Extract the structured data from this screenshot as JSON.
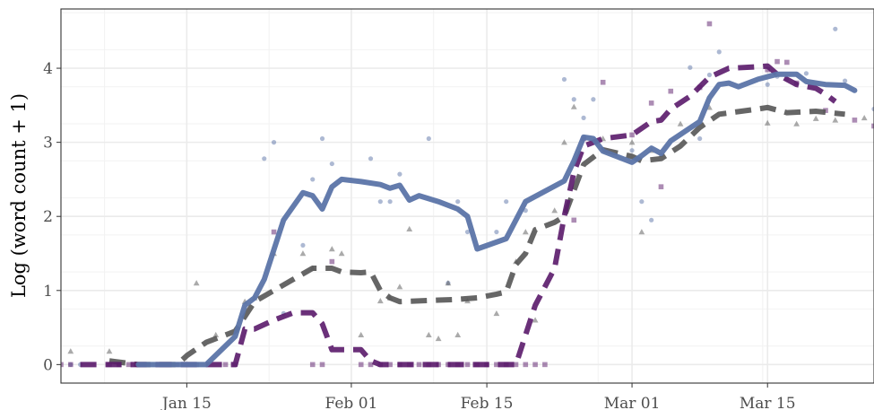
{
  "chart_data": {
    "type": "line",
    "title": "",
    "xlabel": "",
    "ylabel": "Log (word count + 1)",
    "x_type": "date",
    "xlim": [
      "2020-01-02",
      "2020-03-26"
    ],
    "ylim": [
      -0.25,
      4.8
    ],
    "x_ticks": [
      {
        "value": "2020-01-15",
        "label": "Jan 15"
      },
      {
        "value": "2020-02-01",
        "label": "Feb 01"
      },
      {
        "value": "2020-02-15",
        "label": "Feb 15"
      },
      {
        "value": "2020-03-01",
        "label": "Mar 01"
      },
      {
        "value": "2020-03-15",
        "label": "Mar 15"
      }
    ],
    "y_ticks": [
      0,
      1,
      2,
      3,
      4
    ],
    "grid": true,
    "legend": "none",
    "colors": {
      "blue": "#5b74a8",
      "purple": "#5a1a6a",
      "gray": "#555555"
    },
    "series": [
      {
        "color": "#5b74a8",
        "line_style": "solid",
        "marker": "circle",
        "smooth": [
          [
            "2020-01-10",
            0
          ],
          [
            "2020-01-17",
            0
          ],
          [
            "2020-01-20",
            0.38
          ],
          [
            "2020-01-21",
            0.8
          ],
          [
            "2020-01-22",
            0.9
          ],
          [
            "2020-01-23",
            1.15
          ],
          [
            "2020-01-24",
            1.55
          ],
          [
            "2020-01-25",
            1.95
          ],
          [
            "2020-01-27",
            2.32
          ],
          [
            "2020-01-28",
            2.28
          ],
          [
            "2020-01-29",
            2.1
          ],
          [
            "2020-01-30",
            2.4
          ],
          [
            "2020-01-31",
            2.5
          ],
          [
            "2020-02-02",
            2.47
          ],
          [
            "2020-02-04",
            2.43
          ],
          [
            "2020-02-05",
            2.38
          ],
          [
            "2020-02-06",
            2.42
          ],
          [
            "2020-02-07",
            2.22
          ],
          [
            "2020-02-08",
            2.28
          ],
          [
            "2020-02-10",
            2.2
          ],
          [
            "2020-02-12",
            2.1
          ],
          [
            "2020-02-13",
            2.0
          ],
          [
            "2020-02-14",
            1.56
          ],
          [
            "2020-02-17",
            1.7
          ],
          [
            "2020-02-19",
            2.2
          ],
          [
            "2020-02-23",
            2.48
          ],
          [
            "2020-02-24",
            2.75
          ],
          [
            "2020-02-25",
            3.07
          ],
          [
            "2020-02-26",
            3.05
          ],
          [
            "2020-02-27",
            2.88
          ],
          [
            "2020-03-01",
            2.73
          ],
          [
            "2020-03-02",
            2.82
          ],
          [
            "2020-03-03",
            2.92
          ],
          [
            "2020-03-04",
            2.85
          ],
          [
            "2020-03-05",
            3.02
          ],
          [
            "2020-03-08",
            3.28
          ],
          [
            "2020-03-09",
            3.6
          ],
          [
            "2020-03-10",
            3.78
          ],
          [
            "2020-03-11",
            3.8
          ],
          [
            "2020-03-12",
            3.75
          ],
          [
            "2020-03-14",
            3.85
          ],
          [
            "2020-03-16",
            3.92
          ],
          [
            "2020-03-18",
            3.92
          ],
          [
            "2020-03-19",
            3.82
          ],
          [
            "2020-03-21",
            3.78
          ],
          [
            "2020-03-23",
            3.77
          ],
          [
            "2020-03-24",
            3.7
          ]
        ],
        "points": [
          [
            "2020-01-03",
            0
          ],
          [
            "2020-01-04",
            0
          ],
          [
            "2020-01-08",
            0
          ],
          [
            "2020-01-10",
            0
          ],
          [
            "2020-01-12",
            0
          ],
          [
            "2020-01-14",
            0
          ],
          [
            "2020-01-15",
            0
          ],
          [
            "2020-01-23",
            2.78
          ],
          [
            "2020-01-24",
            3.0
          ],
          [
            "2020-01-25",
            0.69
          ],
          [
            "2020-01-27",
            1.61
          ],
          [
            "2020-01-28",
            2.5
          ],
          [
            "2020-01-29",
            3.05
          ],
          [
            "2020-01-30",
            2.71
          ],
          [
            "2020-02-03",
            2.78
          ],
          [
            "2020-02-04",
            2.2
          ],
          [
            "2020-02-05",
            2.2
          ],
          [
            "2020-02-06",
            2.57
          ],
          [
            "2020-02-09",
            3.05
          ],
          [
            "2020-02-11",
            1.1
          ],
          [
            "2020-02-12",
            2.2
          ],
          [
            "2020-02-13",
            1.79
          ],
          [
            "2020-02-16",
            1.79
          ],
          [
            "2020-02-17",
            2.2
          ],
          [
            "2020-02-19",
            2.08
          ],
          [
            "2020-02-23",
            3.85
          ],
          [
            "2020-02-24",
            3.58
          ],
          [
            "2020-02-25",
            3.33
          ],
          [
            "2020-02-26",
            3.58
          ],
          [
            "2020-03-01",
            2.89
          ],
          [
            "2020-03-02",
            2.2
          ],
          [
            "2020-03-03",
            1.95
          ],
          [
            "2020-03-04",
            2.83
          ],
          [
            "2020-03-07",
            4.01
          ],
          [
            "2020-03-08",
            3.05
          ],
          [
            "2020-03-09",
            3.91
          ],
          [
            "2020-03-10",
            4.22
          ],
          [
            "2020-03-15",
            3.78
          ],
          [
            "2020-03-16",
            3.89
          ],
          [
            "2020-03-17",
            3.85
          ],
          [
            "2020-03-19",
            3.93
          ],
          [
            "2020-03-22",
            4.53
          ],
          [
            "2020-03-23",
            3.83
          ],
          [
            "2020-03-26",
            3.45
          ]
        ]
      },
      {
        "color": "#5a1a6a",
        "line_style": "dashed",
        "marker": "square",
        "smooth": [
          [
            "2020-01-04",
            0
          ],
          [
            "2020-01-08",
            0
          ],
          [
            "2020-01-12",
            0
          ],
          [
            "2020-01-18",
            0
          ],
          [
            "2020-01-20",
            0
          ],
          [
            "2020-01-21",
            0.48
          ],
          [
            "2020-01-22",
            0.48
          ],
          [
            "2020-01-24",
            0.6
          ],
          [
            "2020-01-26",
            0.7
          ],
          [
            "2020-01-28",
            0.7
          ],
          [
            "2020-01-29",
            0.55
          ],
          [
            "2020-01-30",
            0.2
          ],
          [
            "2020-02-02",
            0.2
          ],
          [
            "2020-02-03",
            0.05
          ],
          [
            "2020-02-04",
            0
          ],
          [
            "2020-02-08",
            0
          ],
          [
            "2020-02-12",
            0
          ],
          [
            "2020-02-16",
            0
          ],
          [
            "2020-02-18",
            0
          ],
          [
            "2020-02-19",
            0.4
          ],
          [
            "2020-02-20",
            0.8
          ],
          [
            "2020-02-21",
            1.05
          ],
          [
            "2020-02-22",
            1.3
          ],
          [
            "2020-02-23",
            2.0
          ],
          [
            "2020-02-24",
            2.6
          ],
          [
            "2020-02-25",
            2.95
          ],
          [
            "2020-02-27",
            3.05
          ],
          [
            "2020-03-01",
            3.1
          ],
          [
            "2020-03-03",
            3.28
          ],
          [
            "2020-03-04",
            3.3
          ],
          [
            "2020-03-05",
            3.45
          ],
          [
            "2020-03-07",
            3.62
          ],
          [
            "2020-03-09",
            3.88
          ],
          [
            "2020-03-11",
            4.0
          ],
          [
            "2020-03-14",
            4.02
          ],
          [
            "2020-03-15",
            4.03
          ],
          [
            "2020-03-16",
            3.92
          ],
          [
            "2020-03-18",
            3.78
          ],
          [
            "2020-03-20",
            3.73
          ],
          [
            "2020-03-21",
            3.65
          ],
          [
            "2020-03-22",
            3.55
          ]
        ],
        "points": [
          [
            "2020-01-02",
            0
          ],
          [
            "2020-01-03",
            0
          ],
          [
            "2020-01-07",
            0
          ],
          [
            "2020-01-08",
            0
          ],
          [
            "2020-01-09",
            0
          ],
          [
            "2020-01-10",
            0
          ],
          [
            "2020-01-11",
            0
          ],
          [
            "2020-01-12",
            0
          ],
          [
            "2020-01-13",
            0
          ],
          [
            "2020-01-14",
            0
          ],
          [
            "2020-01-15",
            0
          ],
          [
            "2020-01-16",
            0
          ],
          [
            "2020-01-19",
            0
          ],
          [
            "2020-01-20",
            0
          ],
          [
            "2020-01-24",
            1.79
          ],
          [
            "2020-01-28",
            0
          ],
          [
            "2020-01-29",
            0
          ],
          [
            "2020-01-30",
            1.39
          ],
          [
            "2020-02-02",
            0
          ],
          [
            "2020-02-03",
            0
          ],
          [
            "2020-02-04",
            0
          ],
          [
            "2020-02-05",
            0
          ],
          [
            "2020-02-06",
            0
          ],
          [
            "2020-02-07",
            0
          ],
          [
            "2020-02-08",
            0
          ],
          [
            "2020-02-09",
            0
          ],
          [
            "2020-02-10",
            0
          ],
          [
            "2020-02-11",
            0
          ],
          [
            "2020-02-12",
            0
          ],
          [
            "2020-02-13",
            0
          ],
          [
            "2020-02-14",
            0
          ],
          [
            "2020-02-15",
            0
          ],
          [
            "2020-02-16",
            0
          ],
          [
            "2020-02-17",
            0
          ],
          [
            "2020-02-18",
            0
          ],
          [
            "2020-02-19",
            0
          ],
          [
            "2020-02-20",
            0
          ],
          [
            "2020-02-21",
            0
          ],
          [
            "2020-02-24",
            1.95
          ],
          [
            "2020-02-25",
            3.05
          ],
          [
            "2020-02-27",
            3.81
          ],
          [
            "2020-03-01",
            3.1
          ],
          [
            "2020-03-03",
            3.53
          ],
          [
            "2020-03-04",
            2.4
          ],
          [
            "2020-03-05",
            3.69
          ],
          [
            "2020-03-08",
            3.74
          ],
          [
            "2020-03-09",
            4.6
          ],
          [
            "2020-03-15",
            3.98
          ],
          [
            "2020-03-16",
            4.09
          ],
          [
            "2020-03-17",
            4.08
          ],
          [
            "2020-03-18",
            3.8
          ],
          [
            "2020-03-21",
            3.43
          ],
          [
            "2020-03-24",
            3.3
          ],
          [
            "2020-03-26",
            3.22
          ]
        ]
      },
      {
        "color": "#555555",
        "line_style": "dashed",
        "marker": "triangle",
        "smooth": [
          [
            "2020-01-07",
            0.05
          ],
          [
            "2020-01-10",
            0
          ],
          [
            "2020-01-14",
            0
          ],
          [
            "2020-01-15",
            0.12
          ],
          [
            "2020-01-17",
            0.3
          ],
          [
            "2020-01-20",
            0.45
          ],
          [
            "2020-01-22",
            0.85
          ],
          [
            "2020-01-24",
            1.0
          ],
          [
            "2020-01-26",
            1.15
          ],
          [
            "2020-01-28",
            1.3
          ],
          [
            "2020-01-30",
            1.3
          ],
          [
            "2020-01-31",
            1.25
          ],
          [
            "2020-02-02",
            1.24
          ],
          [
            "2020-02-03",
            1.25
          ],
          [
            "2020-02-04",
            1.0
          ],
          [
            "2020-02-05",
            0.9
          ],
          [
            "2020-02-06",
            0.85
          ],
          [
            "2020-02-10",
            0.87
          ],
          [
            "2020-02-12",
            0.88
          ],
          [
            "2020-02-14",
            0.9
          ],
          [
            "2020-02-16",
            0.95
          ],
          [
            "2020-02-17",
            0.98
          ],
          [
            "2020-02-18",
            1.35
          ],
          [
            "2020-02-19",
            1.5
          ],
          [
            "2020-02-20",
            1.82
          ],
          [
            "2020-02-22",
            1.92
          ],
          [
            "2020-02-23",
            2.0
          ],
          [
            "2020-02-24",
            2.35
          ],
          [
            "2020-02-25",
            2.7
          ],
          [
            "2020-02-27",
            2.9
          ],
          [
            "2020-02-28",
            2.87
          ],
          [
            "2020-03-01",
            2.81
          ],
          [
            "2020-03-02",
            2.75
          ],
          [
            "2020-03-04",
            2.78
          ],
          [
            "2020-03-06",
            2.95
          ],
          [
            "2020-03-08",
            3.2
          ],
          [
            "2020-03-10",
            3.38
          ],
          [
            "2020-03-14",
            3.45
          ],
          [
            "2020-03-15",
            3.47
          ],
          [
            "2020-03-17",
            3.4
          ],
          [
            "2020-03-20",
            3.42
          ],
          [
            "2020-03-23",
            3.38
          ]
        ],
        "points": [
          [
            "2020-01-03",
            0.18
          ],
          [
            "2020-01-07",
            0.18
          ],
          [
            "2020-01-16",
            1.1
          ],
          [
            "2020-01-18",
            0.4
          ],
          [
            "2020-01-21",
            0.85
          ],
          [
            "2020-01-22",
            0.9
          ],
          [
            "2020-01-24",
            1.5
          ],
          [
            "2020-01-27",
            1.5
          ],
          [
            "2020-01-28",
            1.3
          ],
          [
            "2020-01-30",
            1.56
          ],
          [
            "2020-01-31",
            1.5
          ],
          [
            "2020-02-02",
            0.4
          ],
          [
            "2020-02-04",
            0.86
          ],
          [
            "2020-02-05",
            0.9
          ],
          [
            "2020-02-06",
            1.05
          ],
          [
            "2020-02-07",
            1.83
          ],
          [
            "2020-02-09",
            0.4
          ],
          [
            "2020-02-10",
            0.35
          ],
          [
            "2020-02-11",
            1.1
          ],
          [
            "2020-02-12",
            0.4
          ],
          [
            "2020-02-13",
            0.86
          ],
          [
            "2020-02-16",
            0.69
          ],
          [
            "2020-02-18",
            1.39
          ],
          [
            "2020-02-19",
            1.79
          ],
          [
            "2020-02-20",
            0.6
          ],
          [
            "2020-02-22",
            2.08
          ],
          [
            "2020-02-23",
            3.0
          ],
          [
            "2020-02-24",
            3.48
          ],
          [
            "2020-02-27",
            3.05
          ],
          [
            "2020-03-01",
            3.0
          ],
          [
            "2020-03-02",
            1.79
          ],
          [
            "2020-03-03",
            2.89
          ],
          [
            "2020-03-06",
            3.25
          ],
          [
            "2020-03-09",
            3.47
          ],
          [
            "2020-03-15",
            3.26
          ],
          [
            "2020-03-18",
            3.25
          ],
          [
            "2020-03-20",
            3.32
          ],
          [
            "2020-03-22",
            3.3
          ],
          [
            "2020-03-25",
            3.33
          ]
        ]
      }
    ]
  }
}
